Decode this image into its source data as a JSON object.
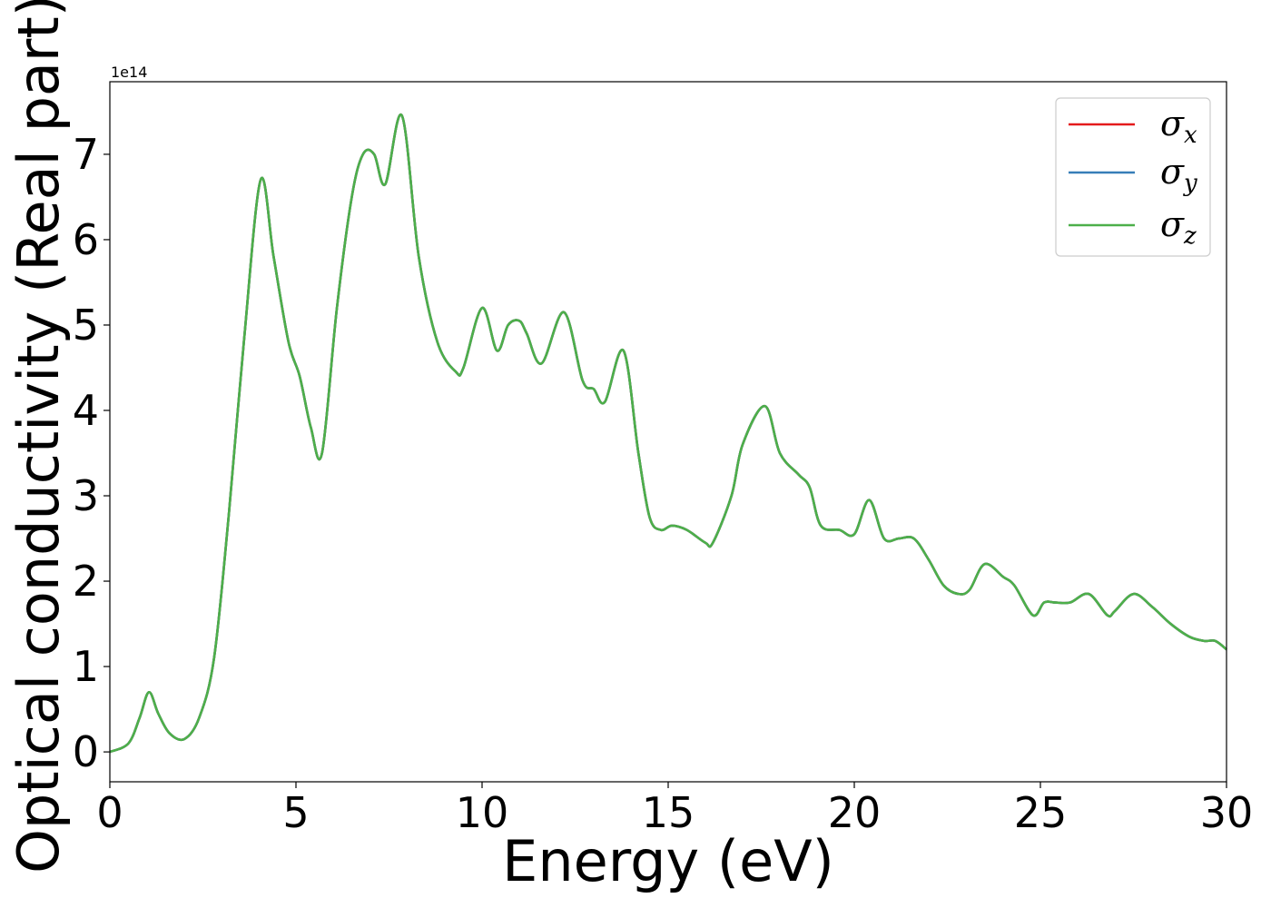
{
  "chart_data": {
    "type": "line",
    "title": "",
    "xlabel": "Energy (eV)",
    "ylabel": "Optical conductivity (Real part)",
    "y_offset_label": "1e14",
    "xlim": [
      0,
      30
    ],
    "ylim": [
      -0.35,
      7.85
    ],
    "y_scale_factor": 100000000000000.0,
    "x_ticks": [
      0,
      5,
      10,
      15,
      20,
      25,
      30
    ],
    "y_ticks": [
      0,
      1,
      2,
      3,
      4,
      5,
      6,
      7
    ],
    "grid": false,
    "legend_position": "top-right",
    "x": [
      0,
      0.5,
      0.8,
      1.05,
      1.3,
      1.6,
      2.0,
      2.4,
      2.8,
      3.2,
      3.6,
      4.05,
      4.4,
      4.8,
      5.1,
      5.4,
      5.7,
      6.1,
      6.5,
      6.8,
      7.1,
      7.4,
      7.85,
      8.3,
      8.8,
      9.3,
      9.5,
      10.0,
      10.4,
      10.7,
      11.0,
      11.2,
      11.6,
      12.2,
      12.7,
      13.0,
      13.3,
      13.8,
      14.2,
      14.5,
      14.8,
      15.1,
      15.5,
      16.0,
      16.2,
      16.7,
      17.0,
      17.6,
      18.0,
      18.5,
      18.8,
      19.1,
      19.6,
      20.0,
      20.4,
      20.8,
      21.2,
      21.6,
      22.0,
      22.4,
      22.8,
      23.1,
      23.5,
      24.0,
      24.3,
      24.8,
      25.1,
      25.4,
      25.8,
      26.3,
      26.8,
      27.0,
      27.5,
      28.0,
      28.5,
      29.0,
      29.4,
      29.7,
      30.0
    ],
    "series": [
      {
        "name": "σx",
        "color": "#e41a1c",
        "values": [
          0.0,
          0.1,
          0.4,
          0.7,
          0.45,
          0.22,
          0.15,
          0.4,
          1.1,
          2.8,
          4.8,
          6.7,
          5.8,
          4.8,
          4.4,
          3.8,
          3.5,
          5.2,
          6.5,
          7.0,
          7.0,
          6.65,
          7.45,
          5.8,
          4.8,
          4.45,
          4.5,
          5.2,
          4.7,
          5.0,
          5.05,
          4.9,
          4.55,
          5.15,
          4.35,
          4.25,
          4.1,
          4.7,
          3.5,
          2.75,
          2.6,
          2.65,
          2.6,
          2.45,
          2.45,
          3.0,
          3.6,
          4.05,
          3.5,
          3.25,
          3.1,
          2.65,
          2.6,
          2.55,
          2.95,
          2.5,
          2.5,
          2.5,
          2.25,
          1.95,
          1.85,
          1.9,
          2.2,
          2.05,
          1.95,
          1.6,
          1.75,
          1.75,
          1.75,
          1.85,
          1.6,
          1.65,
          1.85,
          1.7,
          1.5,
          1.35,
          1.3,
          1.3,
          1.2
        ]
      },
      {
        "name": "σy",
        "color": "#377eb8",
        "values": [
          0.0,
          0.1,
          0.4,
          0.7,
          0.45,
          0.22,
          0.15,
          0.4,
          1.1,
          2.8,
          4.8,
          6.7,
          5.8,
          4.8,
          4.4,
          3.8,
          3.5,
          5.2,
          6.5,
          7.0,
          7.0,
          6.65,
          7.45,
          5.8,
          4.8,
          4.45,
          4.5,
          5.2,
          4.7,
          5.0,
          5.05,
          4.9,
          4.55,
          5.15,
          4.35,
          4.25,
          4.1,
          4.7,
          3.5,
          2.75,
          2.6,
          2.65,
          2.6,
          2.45,
          2.45,
          3.0,
          3.6,
          4.05,
          3.5,
          3.25,
          3.1,
          2.65,
          2.6,
          2.55,
          2.95,
          2.5,
          2.5,
          2.5,
          2.25,
          1.95,
          1.85,
          1.9,
          2.2,
          2.05,
          1.95,
          1.6,
          1.75,
          1.75,
          1.75,
          1.85,
          1.6,
          1.65,
          1.85,
          1.7,
          1.5,
          1.35,
          1.3,
          1.3,
          1.2
        ]
      },
      {
        "name": "σz",
        "color": "#4daf4a",
        "values": [
          0.0,
          0.1,
          0.4,
          0.7,
          0.45,
          0.22,
          0.15,
          0.4,
          1.1,
          2.8,
          4.8,
          6.7,
          5.8,
          4.8,
          4.4,
          3.8,
          3.5,
          5.2,
          6.5,
          7.0,
          7.0,
          6.65,
          7.45,
          5.8,
          4.8,
          4.45,
          4.5,
          5.2,
          4.7,
          5.0,
          5.05,
          4.9,
          4.55,
          5.15,
          4.35,
          4.25,
          4.1,
          4.7,
          3.5,
          2.75,
          2.6,
          2.65,
          2.6,
          2.45,
          2.45,
          3.0,
          3.6,
          4.05,
          3.5,
          3.25,
          3.1,
          2.65,
          2.6,
          2.55,
          2.95,
          2.5,
          2.5,
          2.5,
          2.25,
          1.95,
          1.85,
          1.9,
          2.2,
          2.05,
          1.95,
          1.6,
          1.75,
          1.75,
          1.75,
          1.85,
          1.6,
          1.65,
          1.85,
          1.7,
          1.5,
          1.35,
          1.3,
          1.3,
          1.2
        ]
      }
    ],
    "legend": [
      {
        "symbol": "σ",
        "sub": "x"
      },
      {
        "symbol": "σ",
        "sub": "y"
      },
      {
        "symbol": "σ",
        "sub": "z"
      }
    ]
  }
}
